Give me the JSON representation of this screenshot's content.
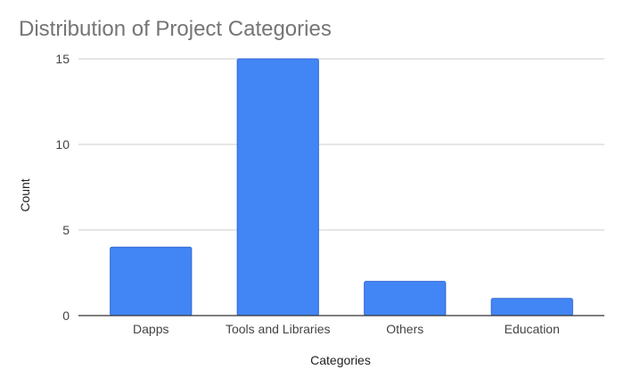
{
  "chart_data": {
    "type": "bar",
    "title": "Distribution of Project Categories",
    "xlabel": "Categories",
    "ylabel": "Count",
    "categories": [
      "Dapps",
      "Tools and Libraries",
      "Others",
      "Education"
    ],
    "values": [
      4,
      15,
      2,
      1
    ],
    "ylim": [
      0,
      15
    ],
    "yticks": [
      0,
      5,
      10,
      15
    ],
    "ytick_labels": [
      "0",
      "5",
      "10",
      "15"
    ],
    "grid": true,
    "legend": "none",
    "colors": {
      "bar": "#4285f4",
      "bar_edge": "#3367d6",
      "grid": "#cccccc",
      "baseline": "#333333"
    }
  }
}
